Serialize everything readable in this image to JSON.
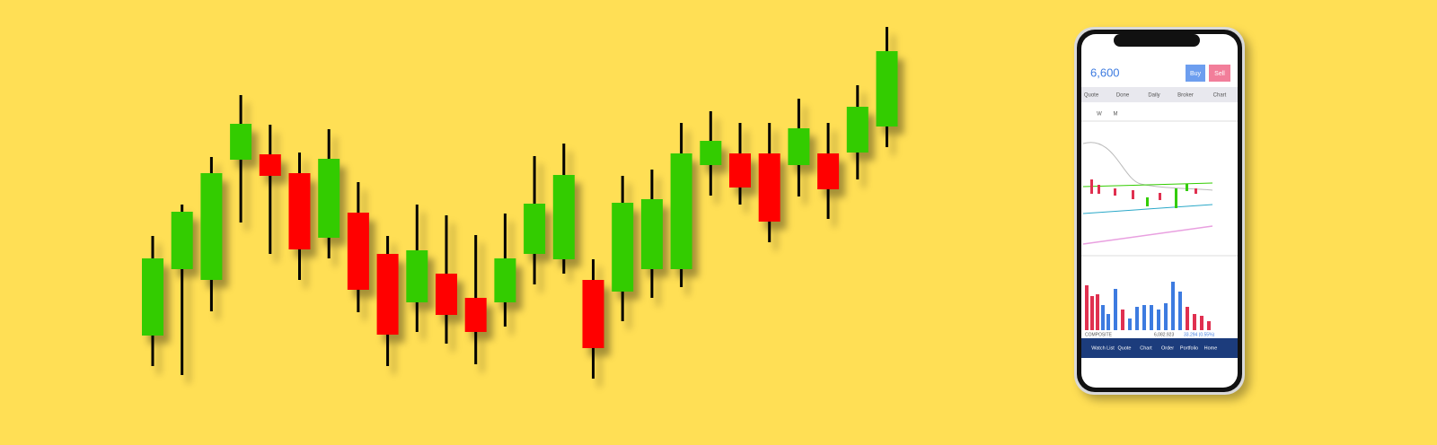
{
  "chart_data": {
    "type": "candlestick",
    "categories": [
      null,
      null,
      null,
      null,
      null,
      null,
      null,
      null,
      null,
      null,
      null,
      null,
      null,
      null,
      null,
      null,
      null,
      null,
      null,
      null,
      null,
      null,
      null,
      null,
      null,
      null
    ],
    "open": [
      122,
      196,
      184,
      318,
      324,
      303,
      231,
      259,
      213,
      159,
      191,
      164,
      159,
      213,
      207,
      184,
      171,
      196,
      196,
      312,
      325,
      325,
      312,
      325,
      326,
      355
    ],
    "high": [
      233,
      268,
      321,
      390,
      357,
      326,
      352,
      293,
      233,
      268,
      256,
      234,
      258,
      322,
      336,
      207,
      300,
      307,
      359,
      372,
      359,
      359,
      386,
      359,
      401,
      466
    ],
    "low": [
      88,
      78,
      149,
      248,
      213,
      184,
      208,
      148,
      88,
      126,
      113,
      90,
      132,
      179,
      191,
      74,
      138,
      164,
      176,
      278,
      268,
      226,
      277,
      252,
      296,
      332
    ],
    "close": [
      208,
      260,
      303,
      358,
      300,
      218,
      319,
      173,
      123,
      217,
      145,
      126,
      208,
      269,
      301,
      108,
      270,
      274,
      325,
      339,
      287,
      249,
      353,
      285,
      377,
      439
    ],
    "up_color": "#33cc00",
    "down_color": "#ff0000",
    "wick_color": "#000000",
    "ylim": [
      0,
      496
    ]
  },
  "phone": {
    "price": "6,600",
    "buy": "Buy",
    "sell": "Sell",
    "tabs": [
      "Quote",
      "Done",
      "Daily",
      "Broker",
      "Chart"
    ],
    "periods": [
      "W",
      "M"
    ],
    "index_name": "COMPOSITE",
    "index_value": "6,082.923",
    "index_change": "33.294 (0.55%)",
    "nav": [
      "Watch List",
      "Quote",
      "Chart",
      "Order",
      "Portfolio",
      "Home"
    ]
  }
}
